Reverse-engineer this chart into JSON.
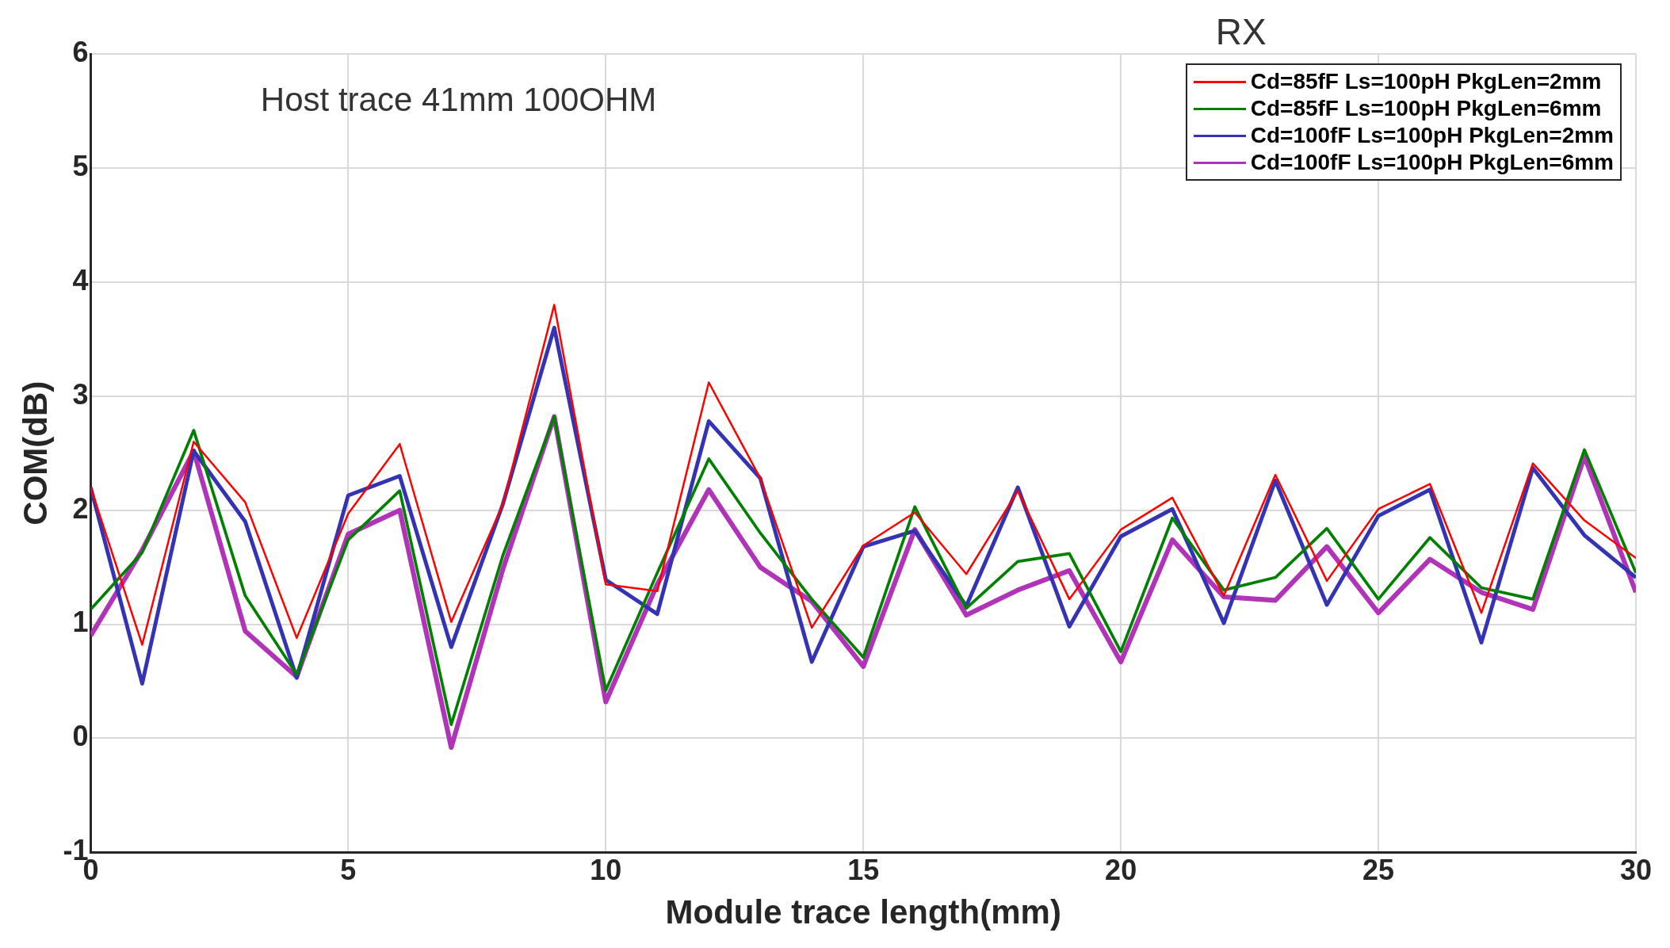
{
  "chart_data": {
    "type": "line",
    "title": "RX",
    "annotations": [
      "Host trace 41mm 100OHM"
    ],
    "xlabel": "Module trace length(mm)",
    "ylabel": "COM(dB)",
    "x": [
      0,
      1,
      2,
      3,
      4,
      5,
      6,
      7,
      8,
      9,
      10,
      11,
      12,
      13,
      14,
      15,
      16,
      17,
      18,
      19,
      20,
      21,
      22,
      23,
      24,
      25,
      26,
      27,
      28,
      29,
      30
    ],
    "xlim": [
      0,
      30
    ],
    "xticks": [
      0,
      5,
      10,
      15,
      20,
      25,
      30
    ],
    "ylim": [
      -1,
      6
    ],
    "yticks": [
      -1,
      0,
      1,
      2,
      3,
      4,
      5,
      6
    ],
    "grid": true,
    "legend": "top right",
    "marker": "none",
    "line_style": "solid",
    "series": [
      {
        "name": "Cd=85fF Ls=100pH PkgLen=2mm",
        "color": "#ff0000",
        "values": [
          2.2,
          0.82,
          2.6,
          2.07,
          0.88,
          1.97,
          2.58,
          1.02,
          2.05,
          3.8,
          1.35,
          1.29,
          3.12,
          2.28,
          0.97,
          1.69,
          1.98,
          1.44,
          2.17,
          1.22,
          1.83,
          2.11,
          1.25,
          2.31,
          1.38,
          2.01,
          2.23,
          1.1,
          2.41,
          1.91,
          1.58
        ]
      },
      {
        "name": "Cd=85fF Ls=100pH PkgLen=6mm",
        "color": "#008000",
        "values": [
          1.13,
          1.63,
          2.7,
          1.25,
          0.56,
          1.74,
          2.17,
          0.12,
          1.6,
          2.82,
          0.42,
          1.45,
          2.45,
          1.8,
          1.22,
          0.71,
          2.03,
          1.14,
          1.55,
          1.62,
          0.76,
          1.93,
          1.3,
          1.41,
          1.84,
          1.22,
          1.76,
          1.32,
          1.22,
          2.53,
          1.45
        ]
      },
      {
        "name": "Cd=100fF Ls=100pH PkgLen=2mm",
        "color": "#3333b3",
        "values": [
          2.2,
          0.48,
          2.52,
          1.9,
          0.53,
          2.13,
          2.3,
          0.8,
          2.05,
          3.6,
          1.39,
          1.09,
          2.78,
          2.28,
          0.67,
          1.68,
          1.82,
          1.16,
          2.2,
          0.98,
          1.77,
          2.01,
          1.01,
          2.26,
          1.17,
          1.95,
          2.18,
          0.84,
          2.37,
          1.78,
          1.41
        ]
      },
      {
        "name": "Cd=100fF Ls=100pH PkgLen=6mm",
        "color": "#b033b8",
        "values": [
          0.9,
          1.65,
          2.52,
          0.94,
          0.54,
          1.79,
          2,
          -0.08,
          1.48,
          2.82,
          0.32,
          1.35,
          2.18,
          1.5,
          1.2,
          0.63,
          1.83,
          1.08,
          1.3,
          1.47,
          0.67,
          1.74,
          1.24,
          1.21,
          1.68,
          1.1,
          1.57,
          1.28,
          1.13,
          2.47,
          1.28
        ]
      }
    ]
  }
}
